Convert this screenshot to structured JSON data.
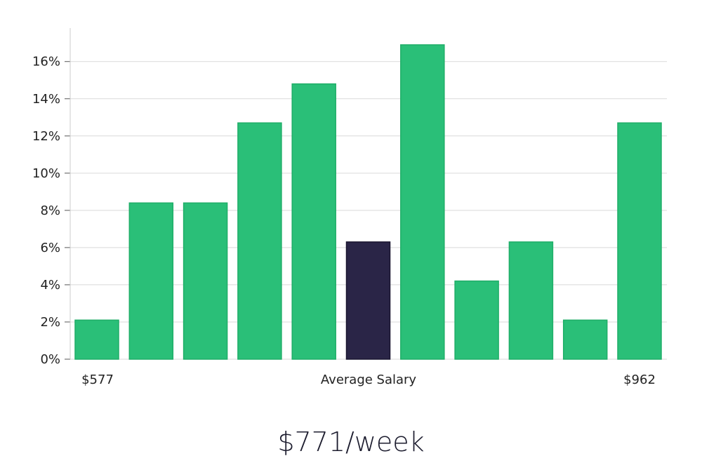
{
  "chart_data": {
    "type": "bar",
    "title": "",
    "xlabel": "Average Salary",
    "ylabel": "",
    "x_min_label": "$577",
    "x_max_label": "$962",
    "values": [
      2.1,
      8.4,
      8.4,
      12.7,
      14.8,
      6.3,
      16.9,
      4.2,
      6.3,
      2.1,
      12.7
    ],
    "highlight_index": 5,
    "ylim": [
      0,
      17.8
    ],
    "yticks": [
      0,
      2,
      4,
      6,
      8,
      10,
      12,
      14,
      16
    ],
    "ytick_suffix": "%",
    "grid": true,
    "colors": {
      "bar": "#2abf78",
      "bar_edge": "#1fae68",
      "highlight": "#2a2547",
      "grid": "#d9d9d9",
      "axis": "#cccccc"
    }
  },
  "headline": "$771/week"
}
